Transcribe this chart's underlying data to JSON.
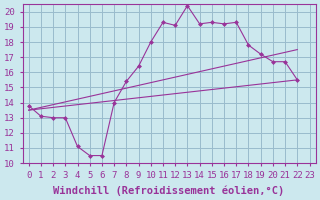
{
  "xlabel": "Windchill (Refroidissement éolien,°C)",
  "bg_color": "#cce8ee",
  "line_color": "#993399",
  "grid_color": "#99bbcc",
  "xlim": [
    -0.5,
    23.5
  ],
  "ylim": [
    10,
    20.5
  ],
  "xticks": [
    0,
    1,
    2,
    3,
    4,
    5,
    6,
    7,
    8,
    9,
    10,
    11,
    12,
    13,
    14,
    15,
    16,
    17,
    18,
    19,
    20,
    21,
    22,
    23
  ],
  "yticks": [
    10,
    11,
    12,
    13,
    14,
    15,
    16,
    17,
    18,
    19,
    20
  ],
  "line1_x": [
    0,
    1,
    2,
    3,
    4,
    5,
    6,
    7,
    8,
    9,
    10,
    11,
    12,
    13,
    14,
    15,
    16,
    17,
    18,
    19,
    20,
    21,
    22
  ],
  "line1_y": [
    13.8,
    13.1,
    13.0,
    13.0,
    11.1,
    10.5,
    10.5,
    14.0,
    15.4,
    16.4,
    18.0,
    19.3,
    19.1,
    20.4,
    19.2,
    19.3,
    19.2,
    19.3,
    17.8,
    17.2,
    16.7,
    16.7,
    15.5
  ],
  "line2_x": [
    0,
    22
  ],
  "line2_y": [
    13.5,
    17.5
  ],
  "line3_x": [
    0,
    22
  ],
  "line3_y": [
    13.5,
    15.5
  ],
  "font": "monospace",
  "xlabel_fontsize": 7.5,
  "tick_fontsize": 6.5
}
